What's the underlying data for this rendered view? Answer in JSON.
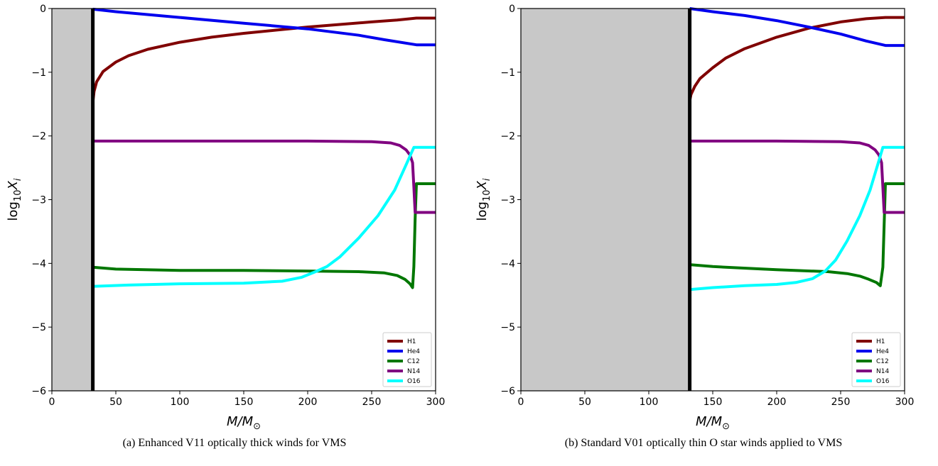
{
  "chart_data": [
    {
      "type": "line",
      "caption": "(a) Enhanced V11 optically thick winds for VMS",
      "xlabel": "M/M⊙",
      "ylabel": "log10Xi",
      "xlim": [
        0,
        300
      ],
      "ylim": [
        -6,
        0
      ],
      "xticks": [
        "0",
        "50",
        "100",
        "150",
        "200",
        "250",
        "300"
      ],
      "yticks": [
        "0",
        "−1",
        "−2",
        "−3",
        "−4",
        "−5",
        "−6"
      ],
      "grid": false,
      "legend_position": "lower-right",
      "shaded_region": [
        0,
        32
      ],
      "boundary_line_x": 32,
      "series": [
        {
          "name": "H1",
          "color": "#800000",
          "points": [
            [
              32,
              -1.48
            ],
            [
              33,
              -1.3
            ],
            [
              35,
              -1.15
            ],
            [
              40,
              -0.99
            ],
            [
              50,
              -0.84
            ],
            [
              60,
              -0.74
            ],
            [
              75,
              -0.64
            ],
            [
              100,
              -0.53
            ],
            [
              125,
              -0.45
            ],
            [
              150,
              -0.39
            ],
            [
              175,
              -0.34
            ],
            [
              200,
              -0.29
            ],
            [
              225,
              -0.25
            ],
            [
              250,
              -0.21
            ],
            [
              270,
              -0.18
            ],
            [
              285,
              -0.15
            ],
            [
              300,
              -0.15
            ]
          ]
        },
        {
          "name": "He4",
          "color": "#0000ee",
          "points": [
            [
              32,
              -0.01
            ],
            [
              50,
              -0.05
            ],
            [
              100,
              -0.14
            ],
            [
              150,
              -0.23
            ],
            [
              200,
              -0.32
            ],
            [
              240,
              -0.42
            ],
            [
              260,
              -0.49
            ],
            [
              285,
              -0.57
            ],
            [
              300,
              -0.57
            ]
          ]
        },
        {
          "name": "C12",
          "color": "#007700",
          "points": [
            [
              32,
              -4.06
            ],
            [
              50,
              -4.09
            ],
            [
              100,
              -4.11
            ],
            [
              150,
              -4.11
            ],
            [
              200,
              -4.12
            ],
            [
              240,
              -4.13
            ],
            [
              260,
              -4.15
            ],
            [
              270,
              -4.19
            ],
            [
              276,
              -4.25
            ],
            [
              280,
              -4.32
            ],
            [
              282,
              -4.38
            ],
            [
              283,
              -4.05
            ],
            [
              284,
              -3.3
            ],
            [
              285,
              -2.75
            ],
            [
              300,
              -2.75
            ]
          ]
        },
        {
          "name": "N14",
          "color": "#800080",
          "points": [
            [
              32,
              -2.08
            ],
            [
              100,
              -2.08
            ],
            [
              200,
              -2.08
            ],
            [
              250,
              -2.09
            ],
            [
              265,
              -2.11
            ],
            [
              272,
              -2.15
            ],
            [
              277,
              -2.22
            ],
            [
              280,
              -2.3
            ],
            [
              282,
              -2.42
            ],
            [
              283,
              -2.8
            ],
            [
              284,
              -3.2
            ],
            [
              300,
              -3.2
            ]
          ]
        },
        {
          "name": "O16",
          "color": "#00ffff",
          "points": [
            [
              32,
              -4.36
            ],
            [
              60,
              -4.34
            ],
            [
              100,
              -4.32
            ],
            [
              150,
              -4.31
            ],
            [
              180,
              -4.28
            ],
            [
              195,
              -4.22
            ],
            [
              205,
              -4.14
            ],
            [
              215,
              -4.05
            ],
            [
              225,
              -3.9
            ],
            [
              240,
              -3.6
            ],
            [
              255,
              -3.25
            ],
            [
              268,
              -2.85
            ],
            [
              277,
              -2.45
            ],
            [
              283,
              -2.18
            ],
            [
              300,
              -2.18
            ]
          ]
        }
      ]
    },
    {
      "type": "line",
      "caption": "(b) Standard V01 optically thin O star winds applied to VMS",
      "xlabel": "M/M⊙",
      "ylabel": "log10Xi",
      "xlim": [
        0,
        300
      ],
      "ylim": [
        -6,
        0
      ],
      "xticks": [
        "0",
        "50",
        "100",
        "150",
        "200",
        "250",
        "300"
      ],
      "yticks": [
        "0",
        "−1",
        "−2",
        "−3",
        "−4",
        "−5",
        "−6"
      ],
      "grid": false,
      "legend_position": "lower-right",
      "shaded_region": [
        0,
        132
      ],
      "boundary_line_x": 132,
      "series": [
        {
          "name": "H1",
          "color": "#800000",
          "points": [
            [
              132,
              -1.45
            ],
            [
              133,
              -1.35
            ],
            [
              136,
              -1.22
            ],
            [
              140,
              -1.1
            ],
            [
              150,
              -0.93
            ],
            [
              160,
              -0.78
            ],
            [
              175,
              -0.63
            ],
            [
              200,
              -0.45
            ],
            [
              225,
              -0.31
            ],
            [
              250,
              -0.21
            ],
            [
              270,
              -0.16
            ],
            [
              285,
              -0.14
            ],
            [
              300,
              -0.14
            ]
          ]
        },
        {
          "name": "He4",
          "color": "#0000ee",
          "points": [
            [
              132,
              0.0
            ],
            [
              150,
              -0.05
            ],
            [
              175,
              -0.11
            ],
            [
              200,
              -0.19
            ],
            [
              225,
              -0.29
            ],
            [
              250,
              -0.4
            ],
            [
              270,
              -0.51
            ],
            [
              285,
              -0.58
            ],
            [
              300,
              -0.58
            ]
          ]
        },
        {
          "name": "C12",
          "color": "#007700",
          "points": [
            [
              132,
              -4.02
            ],
            [
              150,
              -4.05
            ],
            [
              200,
              -4.1
            ],
            [
              240,
              -4.13
            ],
            [
              255,
              -4.16
            ],
            [
              265,
              -4.2
            ],
            [
              272,
              -4.25
            ],
            [
              278,
              -4.3
            ],
            [
              281,
              -4.35
            ],
            [
              283,
              -4.06
            ],
            [
              284,
              -3.4
            ],
            [
              285,
              -2.75
            ],
            [
              300,
              -2.75
            ]
          ]
        },
        {
          "name": "N14",
          "color": "#800080",
          "points": [
            [
              132,
              -2.08
            ],
            [
              200,
              -2.08
            ],
            [
              250,
              -2.09
            ],
            [
              265,
              -2.11
            ],
            [
              272,
              -2.15
            ],
            [
              277,
              -2.22
            ],
            [
              280,
              -2.3
            ],
            [
              282,
              -2.42
            ],
            [
              283,
              -2.8
            ],
            [
              284,
              -3.2
            ],
            [
              300,
              -3.2
            ]
          ]
        },
        {
          "name": "O16",
          "color": "#00ffff",
          "points": [
            [
              132,
              -4.41
            ],
            [
              150,
              -4.38
            ],
            [
              175,
              -4.35
            ],
            [
              200,
              -4.33
            ],
            [
              215,
              -4.3
            ],
            [
              228,
              -4.24
            ],
            [
              238,
              -4.12
            ],
            [
              246,
              -3.95
            ],
            [
              255,
              -3.65
            ],
            [
              265,
              -3.25
            ],
            [
              273,
              -2.85
            ],
            [
              279,
              -2.45
            ],
            [
              283,
              -2.18
            ],
            [
              300,
              -2.18
            ]
          ]
        }
      ]
    }
  ]
}
